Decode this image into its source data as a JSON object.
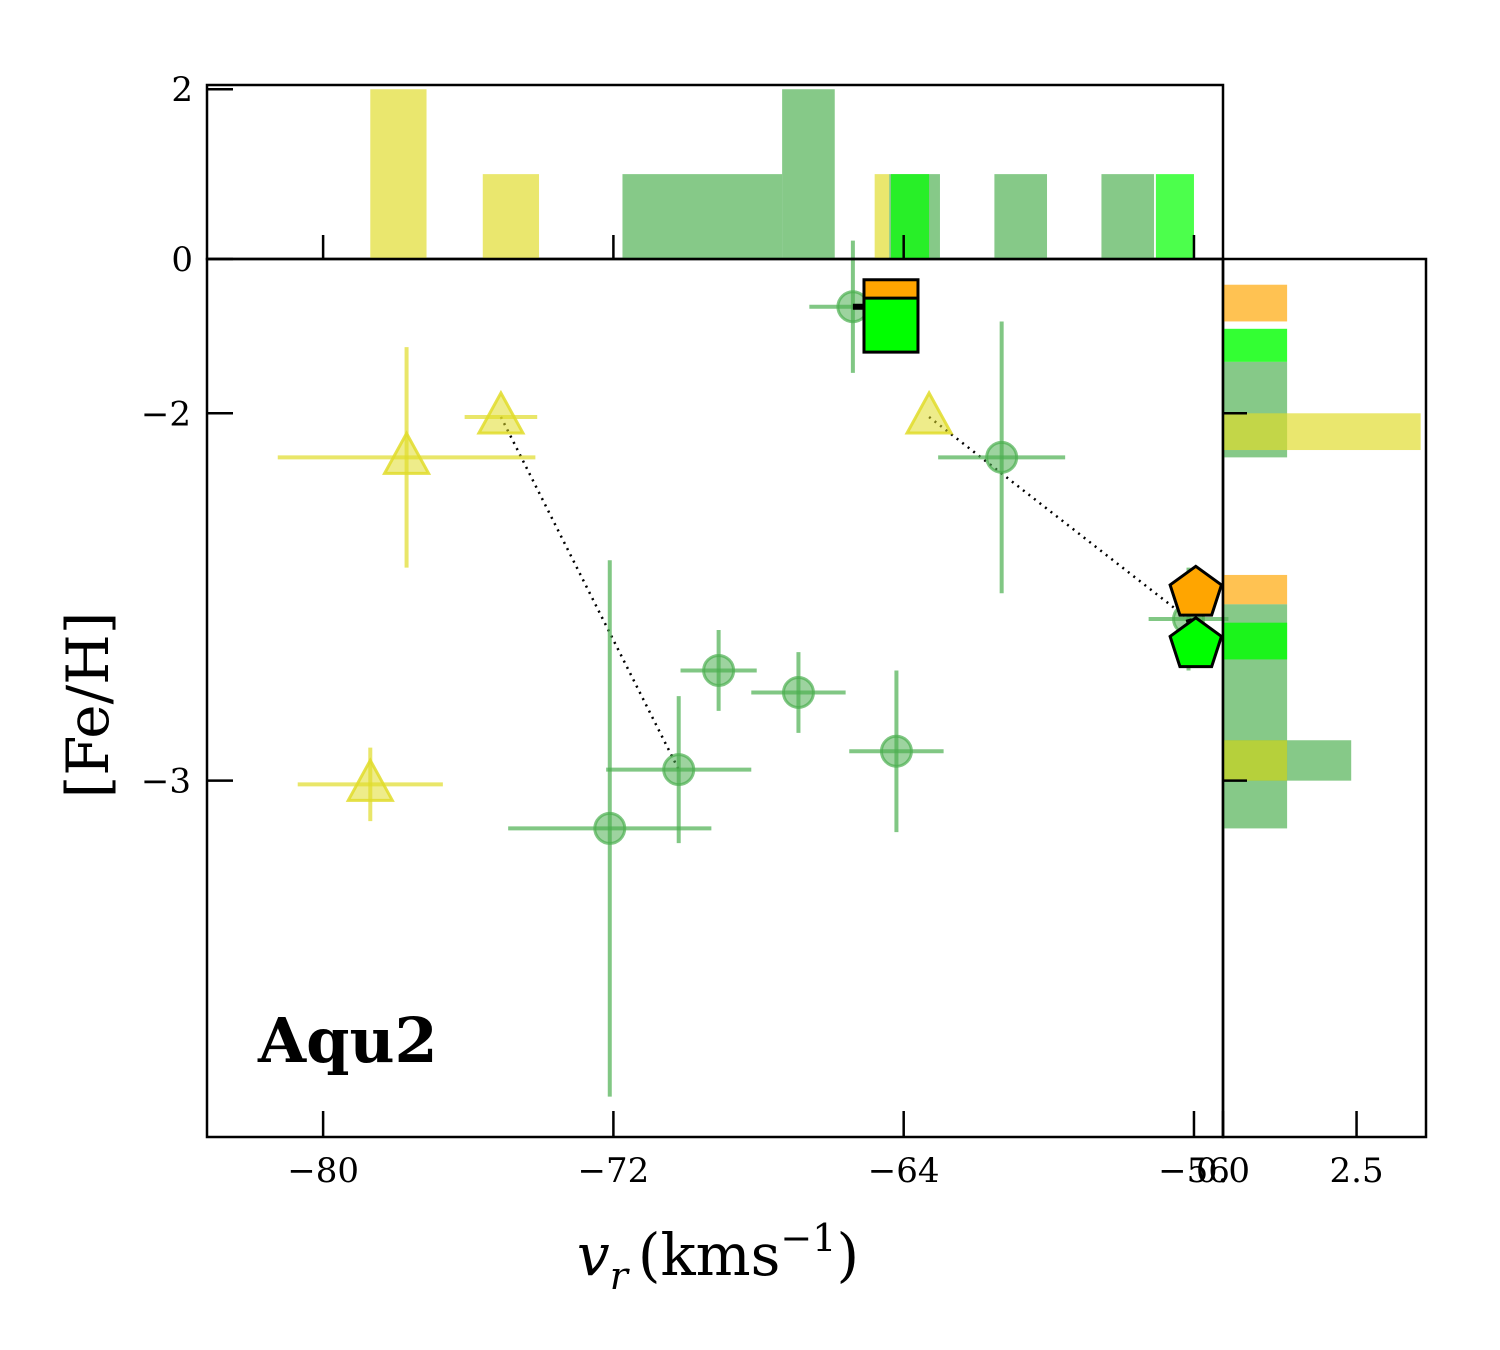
{
  "chart_data": {
    "type": "scatter",
    "panel_label": "Aqu2",
    "xlabel": {
      "main": "v",
      "sub": "r",
      "unit": "(kms",
      "exp": "−1",
      "close": ")"
    },
    "ylabel": "[Fe/H]",
    "xlim": [
      -83.2,
      -55.2
    ],
    "ylim": [
      -3.97,
      -1.58
    ],
    "x_ticks": [
      -80,
      -72,
      -64,
      -56
    ],
    "x_tick_labels": [
      "−80",
      "−72",
      "−64",
      "−56"
    ],
    "y_ticks": [
      -2,
      -3
    ],
    "y_tick_labels": [
      "−2",
      "−3"
    ],
    "top_hist": {
      "ylim": [
        0,
        2.05
      ],
      "y_ticks": [
        0,
        2
      ],
      "y_tick_labels": [
        "0",
        "2"
      ],
      "bars": [
        {
          "group": "yellow",
          "x0": -78.7,
          "x1": -77.15,
          "count": 2
        },
        {
          "group": "yellow",
          "x0": -75.6,
          "x1": -74.05,
          "count": 1
        },
        {
          "group": "yellow",
          "x0": -64.8,
          "x1": -64.4,
          "count": 1
        },
        {
          "group": "green",
          "x0": -71.75,
          "x1": -67.35,
          "count": 1
        },
        {
          "group": "green",
          "x0": -67.35,
          "x1": -65.9,
          "count": 2
        },
        {
          "group": "green",
          "x0": -64.4,
          "x1": -63.0,
          "count": 1
        },
        {
          "group": "green",
          "x0": -61.5,
          "x1": -60.05,
          "count": 1
        },
        {
          "group": "green",
          "x0": -58.55,
          "x1": -57.1,
          "count": 1
        },
        {
          "group": "lime",
          "x0": -64.35,
          "x1": -63.3,
          "count": 1
        },
        {
          "group": "lime",
          "x0": -57.05,
          "x1": -56.0,
          "count": 1
        }
      ]
    },
    "right_hist": {
      "xlim": [
        0,
        3.8
      ],
      "x_ticks": [
        0,
        2.5
      ],
      "x_tick_labels": [
        "0.0",
        "2.5"
      ],
      "bars": [
        {
          "group": "orange",
          "y0": -1.65,
          "y1": -1.75,
          "count": 1.2
        },
        {
          "group": "lime",
          "y0": -1.77,
          "y1": -1.86,
          "count": 1.2
        },
        {
          "group": "green",
          "y0": -1.86,
          "y1": -2.12,
          "count": 1.2
        },
        {
          "group": "yellow",
          "y0": -2.0,
          "y1": -2.1,
          "count": 3.7
        },
        {
          "group": "orange",
          "y0": -2.44,
          "y1": -2.52,
          "count": 1.2
        },
        {
          "group": "green",
          "y0": -2.52,
          "y1": -3.13,
          "count": 1.2
        },
        {
          "group": "lime",
          "y0": -2.57,
          "y1": -2.67,
          "count": 1.2
        },
        {
          "group": "green",
          "y0": -2.89,
          "y1": -3.0,
          "count": 2.4
        },
        {
          "group": "yellow",
          "y0": -2.89,
          "y1": -3.0,
          "count": 1.2
        }
      ]
    },
    "series": [
      {
        "name": "green circles",
        "marker": "circle",
        "points": [
          {
            "x": -65.4,
            "y": -1.71,
            "xerr": 1.2,
            "yerr": 0.18
          },
          {
            "x": -61.3,
            "y": -2.12,
            "xerr": 1.75,
            "yerr": 0.37
          },
          {
            "x": -56.15,
            "y": -2.56,
            "xerr": 1.1,
            "yerr": 0.14
          },
          {
            "x": -69.1,
            "y": -2.7,
            "xerr": 1.05,
            "yerr": 0.11
          },
          {
            "x": -66.9,
            "y": -2.76,
            "xerr": 1.3,
            "yerr": 0.11
          },
          {
            "x": -70.2,
            "y": -2.97,
            "xerr": 2.0,
            "yerr": 0.2
          },
          {
            "x": -64.2,
            "y": -2.92,
            "xerr": 1.3,
            "yerr": 0.22
          },
          {
            "x": -72.1,
            "y": -3.13,
            "xerr": 2.8,
            "yerr": 0.73
          }
        ]
      },
      {
        "name": "yellow triangles",
        "marker": "triangle",
        "points": [
          {
            "x": -77.7,
            "y": -2.12,
            "xerr": 3.55,
            "yerr": 0.3
          },
          {
            "x": -75.1,
            "y": -2.01,
            "xerr": 1.0,
            "yerr": 0.0
          },
          {
            "x": -63.3,
            "y": -2.01,
            "xerr": 0.0,
            "yerr": 0.0
          },
          {
            "x": -78.7,
            "y": -3.01,
            "xerr": 2.0,
            "yerr": 0.1
          }
        ]
      },
      {
        "name": "orange square",
        "marker": "square",
        "color": "#ffa500",
        "points": [
          {
            "x": -64.35,
            "y": -1.71
          }
        ]
      },
      {
        "name": "lime square",
        "marker": "square",
        "color": "#00ff00",
        "points": [
          {
            "x": -64.35,
            "y": -1.76
          }
        ]
      },
      {
        "name": "orange pentagon",
        "marker": "pentagon",
        "color": "#ffa500",
        "points": [
          {
            "x": -55.95,
            "y": -2.49
          }
        ]
      },
      {
        "name": "lime pentagon",
        "marker": "pentagon",
        "color": "#00ff00",
        "points": [
          {
            "x": -55.95,
            "y": -2.63
          }
        ]
      }
    ],
    "offset_lines": [
      {
        "x": [
          -65.4,
          -64.35
        ],
        "y": [
          -1.71,
          -1.71
        ]
      },
      {
        "x": [
          -56.15,
          -55.95
        ],
        "y": [
          -2.56,
          -2.63
        ]
      }
    ],
    "dotted_links": [
      {
        "x": [
          -75.1,
          -70.2
        ],
        "y": [
          -2.01,
          -2.97
        ]
      },
      {
        "x": [
          -63.3,
          -56.15
        ],
        "y": [
          -2.01,
          -2.56
        ]
      }
    ],
    "colors": {
      "green": "#4caf50",
      "yellow": "#e0dc2a",
      "lime": "#00ff00",
      "orange": "#ffa500"
    }
  }
}
